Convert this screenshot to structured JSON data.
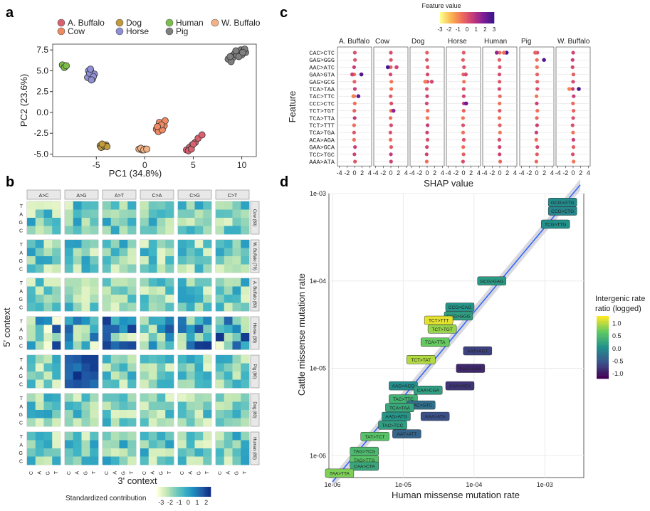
{
  "panel_labels": [
    "a",
    "b",
    "c",
    "d"
  ],
  "colors": {
    "species": {
      "A. Buffalo": "#d9606e",
      "Cow": "#ef8a62",
      "Dog": "#c19a3a",
      "Horse": "#8f8fd6",
      "Human": "#7bbf4a",
      "Pig": "#7f7f7f",
      "W. Buffalo": "#f4b183"
    }
  },
  "chart_data": [
    {
      "id": "a",
      "type": "scatter",
      "xlabel": "PC1 (34.8%)",
      "ylabel": "PC2 (23.6%)",
      "xlim": [
        -9.5,
        11.5
      ],
      "ylim": [
        -5.3,
        8.2
      ],
      "xticks": [
        -5,
        0,
        5,
        10
      ],
      "yticks": [
        -5.0,
        -2.5,
        0.0,
        2.5,
        5.0,
        7.5
      ],
      "ytick_labels": [
        "-5.0",
        "-2.5",
        "0.0",
        "2.5",
        "5.0",
        "7.5"
      ],
      "legend": [
        "A. Buffalo",
        "Cow",
        "Dog",
        "Horse",
        "Human",
        "Pig",
        "W. Buffalo"
      ],
      "series": [
        {
          "name": "Human",
          "points": [
            [
              -8.4,
              5.6
            ],
            [
              -8.2,
              5.5
            ],
            [
              -8.5,
              5.7
            ],
            [
              -8.3,
              5.4
            ],
            [
              -8.1,
              5.6
            ]
          ]
        },
        {
          "name": "Horse",
          "points": [
            [
              -5.8,
              5.0
            ],
            [
              -5.5,
              4.8
            ],
            [
              -5.6,
              4.4
            ],
            [
              -5.2,
              4.6
            ],
            [
              -5.9,
              4.2
            ],
            [
              -5.4,
              4.0
            ],
            [
              -5.7,
              4.7
            ],
            [
              -5.3,
              4.3
            ],
            [
              -5.6,
              5.2
            ],
            [
              -5.5,
              3.9
            ]
          ]
        },
        {
          "name": "Dog",
          "points": [
            [
              -4.6,
              -4.0
            ],
            [
              -4.3,
              -4.1
            ],
            [
              -4.0,
              -3.9
            ],
            [
              -4.5,
              -4.2
            ],
            [
              -4.2,
              -4.0
            ],
            [
              -3.9,
              -4.1
            ],
            [
              -4.4,
              -3.8
            ]
          ]
        },
        {
          "name": "W. Buffalo",
          "points": [
            [
              -0.6,
              -4.4
            ],
            [
              -0.3,
              -4.5
            ],
            [
              0.0,
              -4.4
            ],
            [
              -0.4,
              -4.3
            ],
            [
              -0.1,
              -4.5
            ],
            [
              0.2,
              -4.4
            ]
          ]
        },
        {
          "name": "Cow",
          "points": [
            [
              1.2,
              -2.0
            ],
            [
              1.6,
              -1.8
            ],
            [
              1.9,
              -1.3
            ],
            [
              1.5,
              -1.2
            ],
            [
              2.0,
              -1.6
            ],
            [
              1.4,
              -2.3
            ],
            [
              1.8,
              -2.1
            ],
            [
              2.1,
              -1.0
            ],
            [
              1.7,
              -1.5
            ],
            [
              1.3,
              -1.7
            ]
          ]
        },
        {
          "name": "A. Buffalo",
          "points": [
            [
              4.3,
              -4.5
            ],
            [
              4.6,
              -4.2
            ],
            [
              4.9,
              -3.9
            ],
            [
              5.2,
              -3.6
            ],
            [
              5.5,
              -3.1
            ],
            [
              5.9,
              -2.7
            ],
            [
              4.5,
              -4.6
            ],
            [
              4.8,
              -4.4
            ],
            [
              5.0,
              -3.8
            ]
          ]
        },
        {
          "name": "Pig",
          "points": [
            [
              8.6,
              6.4
            ],
            [
              9.0,
              6.8
            ],
            [
              9.3,
              7.1
            ],
            [
              9.6,
              7.3
            ],
            [
              9.9,
              7.5
            ],
            [
              10.2,
              7.4
            ],
            [
              10.4,
              7.2
            ],
            [
              9.1,
              6.6
            ],
            [
              9.5,
              6.9
            ],
            [
              9.8,
              7.0
            ],
            [
              8.9,
              6.1
            ],
            [
              10.0,
              6.9
            ],
            [
              10.3,
              7.6
            ],
            [
              9.4,
              7.4
            ],
            [
              9.7,
              6.7
            ],
            [
              8.8,
              6.7
            ],
            [
              10.1,
              7.2
            ]
          ]
        }
      ]
    },
    {
      "id": "b",
      "type": "heatmap",
      "title": "",
      "xlabel": "3' context",
      "ylabel": "5' context",
      "mutation_types": [
        "A>C",
        "A>G",
        "A>T",
        "C>A",
        "C>G",
        "C>T"
      ],
      "species_rows": [
        "Cow (80)",
        "W. Buffalo (79)",
        "A. Buffalo (80)",
        "Horse (38)",
        "Pig (80)",
        "Dog (80)",
        "Human (80)"
      ],
      "row_bases": [
        "T",
        "A",
        "G",
        "C"
      ],
      "col_bases": [
        "C",
        "A",
        "G",
        "T"
      ],
      "legend_title": "Standardized contribution",
      "legend_ticks": [
        -3,
        -2,
        -1,
        0,
        1,
        2
      ],
      "value_range": [
        -3.5,
        2.5
      ]
    },
    {
      "id": "c",
      "type": "scatter",
      "xlabel": "SHAP value",
      "ylabel": "Feature",
      "panels": [
        "A. Buffalo",
        "Cow",
        "Dog",
        "Horse",
        "Human",
        "Pig",
        "W. Buffalo"
      ],
      "features": [
        "CAC>CTC",
        "GAG>GGG",
        "AAC>ATC",
        "GAA>GTA",
        "GAG>GCG",
        "TCA>TAA",
        "TAC>TTC",
        "CCC>CTC",
        "TCT>TGT",
        "TCA>TTA",
        "TCT>TTT",
        "TCA>TGA",
        "ACA>AGA",
        "GAA>GCA",
        "TCC>TGC",
        "AAA>ATA"
      ],
      "xticks": [
        -4,
        -2,
        0,
        2,
        4
      ],
      "xlim": [
        -4.5,
        4.5
      ],
      "legend_title": "Feature value",
      "legend_ticks": [
        -3,
        -2,
        -1,
        0,
        1,
        2,
        3
      ],
      "outliers": [
        {
          "panel": "A. Buffalo",
          "feature": "GAA>GTA",
          "shap": -0.6,
          "fv": 0.5
        },
        {
          "panel": "A. Buffalo",
          "feature": "GAA>GTA",
          "shap": 1.8,
          "fv": 2.7
        },
        {
          "panel": "A. Buffalo",
          "feature": "TAC>TTC",
          "shap": 1.0,
          "fv": 2.4
        },
        {
          "panel": "A. Buffalo",
          "feature": "TAC>TTC",
          "shap": -0.3,
          "fv": -1.0
        },
        {
          "panel": "Cow",
          "feature": "AAC>ATC",
          "shap": -0.8,
          "fv": 2.8
        },
        {
          "panel": "Cow",
          "feature": "AAC>ATC",
          "shap": 1.5,
          "fv": 0.4
        },
        {
          "panel": "Cow",
          "feature": "TCT>TGT",
          "shap": 0.7,
          "fv": 1.6
        },
        {
          "panel": "Dog",
          "feature": "GAG>GCG",
          "shap": -0.5,
          "fv": -0.8
        },
        {
          "panel": "Dog",
          "feature": "GAG>GCG",
          "shap": 1.2,
          "fv": 0.3
        },
        {
          "panel": "Horse",
          "feature": "GAA>GTA",
          "shap": 0.6,
          "fv": 0.2
        },
        {
          "panel": "Horse",
          "feature": "CCC>CTC",
          "shap": 0.7,
          "fv": 2.2
        },
        {
          "panel": "Human",
          "feature": "CAC>CTC",
          "shap": -0.8,
          "fv": 1.5
        },
        {
          "panel": "Human",
          "feature": "CAC>CTC",
          "shap": 1.8,
          "fv": 3.0
        },
        {
          "panel": "Human",
          "feature": "CAC>CTC",
          "shap": 1.1,
          "fv": -0.5
        },
        {
          "panel": "Pig",
          "feature": "CAC>CTC",
          "shap": -0.4,
          "fv": -0.3
        },
        {
          "panel": "Pig",
          "feature": "GAG>GGG",
          "shap": 1.9,
          "fv": 2.6
        },
        {
          "panel": "W. Buffalo",
          "feature": "TCA>TAA",
          "shap": -1.0,
          "fv": -1.0
        },
        {
          "panel": "W. Buffalo",
          "feature": "TCA>TAA",
          "shap": 1.5,
          "fv": 2.8
        }
      ]
    },
    {
      "id": "d",
      "type": "scatter",
      "xlabel": "Human missense mutation rate",
      "ylabel": "Cattle missense mutation rate",
      "scale": "log10",
      "xlim": [
        -6.05,
        -2.45
      ],
      "ylim": [
        -6.25,
        -3.0
      ],
      "xticks": [
        "1e-06",
        "1e-05",
        "1e-04",
        "1e-03"
      ],
      "yticks": [
        "1e-06",
        "1e-05",
        "1e-04",
        "1e-03"
      ],
      "legend_title": [
        "Intergenic rate",
        "ratio (logged)"
      ],
      "legend_ticks": [
        "1.0",
        "0.5",
        "0.0",
        "-0.5",
        "-1.0"
      ],
      "fit_line": {
        "x": [
          -6.0,
          -2.5
        ],
        "y": [
          -6.3,
          -2.9
        ]
      },
      "labels": [
        {
          "text": "GCG>GTG",
          "x": -2.75,
          "y": -3.1,
          "v": 0.0
        },
        {
          "text": "CCG>CTG",
          "x": -2.75,
          "y": -3.2,
          "v": -0.05
        },
        {
          "text": "TCG>TTG",
          "x": -2.85,
          "y": -3.35,
          "v": 0.05
        },
        {
          "text": "GCG>GAG",
          "x": -3.75,
          "y": -4.0,
          "v": 0.15
        },
        {
          "text": "CCG>CAG",
          "x": -4.2,
          "y": -4.3,
          "v": 0.1
        },
        {
          "text": "GCG>GGG",
          "x": -4.22,
          "y": -4.4,
          "v": 0.2
        },
        {
          "text": "TCT>TTT",
          "x": -4.5,
          "y": -4.45,
          "v": 1.2
        },
        {
          "text": "TCT>TGT",
          "x": -4.45,
          "y": -4.55,
          "v": 0.9
        },
        {
          "text": "TCA>TTA",
          "x": -4.55,
          "y": -4.7,
          "v": 0.7
        },
        {
          "text": "AAT>AGT",
          "x": -3.95,
          "y": -4.8,
          "v": -0.7
        },
        {
          "text": "TCT>TAT",
          "x": -4.75,
          "y": -4.9,
          "v": 1.0
        },
        {
          "text": "AGA>AGA",
          "x": -4.05,
          "y": -5.0,
          "v": -0.9
        },
        {
          "text": "AAG>ACG",
          "x": -5.0,
          "y": -5.2,
          "v": 0.0
        },
        {
          "text": "AAA>ACA",
          "x": -4.2,
          "y": -5.2,
          "v": -0.8
        },
        {
          "text": "CAA>CGA",
          "x": -4.65,
          "y": -5.25,
          "v": 0.2
        },
        {
          "text": "TAC>TTC",
          "x": -5.0,
          "y": -5.35,
          "v": 0.4
        },
        {
          "text": "GAC>GTC",
          "x": -4.75,
          "y": -5.42,
          "v": -0.3
        },
        {
          "text": "TCA>TAA",
          "x": -5.05,
          "y": -5.45,
          "v": 0.3
        },
        {
          "text": "AAG>ATG",
          "x": -5.1,
          "y": -5.55,
          "v": 0.1
        },
        {
          "text": "AAA>ATA",
          "x": -4.55,
          "y": -5.55,
          "v": -0.6
        },
        {
          "text": "TAC>TCC",
          "x": -5.15,
          "y": -5.65,
          "v": 0.2
        },
        {
          "text": "AAT>ATT",
          "x": -4.95,
          "y": -5.75,
          "v": -0.4
        },
        {
          "text": "TAT>TCT",
          "x": -5.4,
          "y": -5.78,
          "v": 0.6
        },
        {
          "text": "TAG>TCG",
          "x": -5.55,
          "y": -5.95,
          "v": 0.5
        },
        {
          "text": "TAG>TTG",
          "x": -5.55,
          "y": -6.05,
          "v": 0.6
        },
        {
          "text": "CAA>CTA",
          "x": -5.55,
          "y": -6.12,
          "v": 0.3
        },
        {
          "text": "TAA>TTA",
          "x": -5.9,
          "y": -6.2,
          "v": 0.8
        }
      ]
    }
  ]
}
